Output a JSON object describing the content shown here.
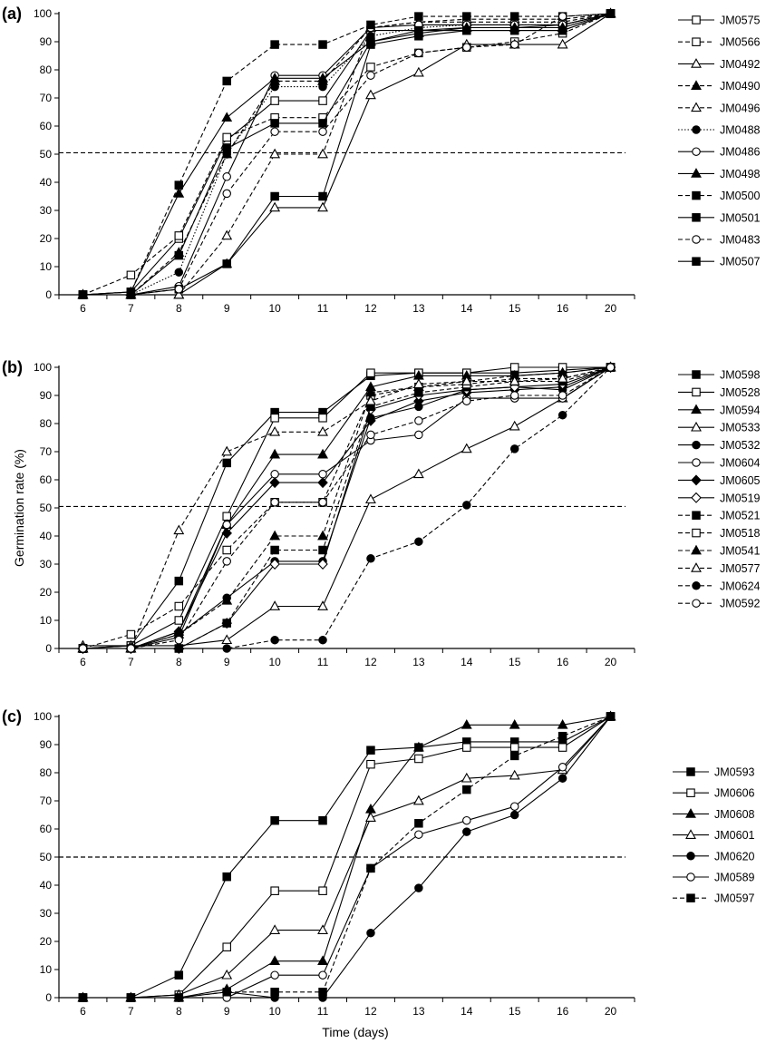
{
  "figure": {
    "ylabel": "Germination rate (%)",
    "xlabel": "Time (days)"
  },
  "chart_data": [
    {
      "type": "line",
      "panel_label": "(a)",
      "categories": [
        "6",
        "7",
        "8",
        "9",
        "10",
        "11",
        "12",
        "13",
        "14",
        "15",
        "16",
        "20"
      ],
      "ylim": [
        0,
        100
      ],
      "yticks": [
        0,
        10,
        20,
        30,
        40,
        50,
        60,
        70,
        80,
        90,
        100
      ],
      "reference_line": 50.5,
      "legend_position": "right",
      "series": [
        {
          "name": "JM0575",
          "marker": "square-open",
          "dash": false,
          "values": [
            0,
            1,
            20,
            55,
            69,
            69,
            94,
            94,
            95,
            95,
            96,
            100
          ]
        },
        {
          "name": "JM0566",
          "marker": "square-open",
          "dash": true,
          "values": [
            0,
            7,
            21,
            56,
            63,
            63,
            81,
            86,
            88,
            90,
            93,
            100
          ]
        },
        {
          "name": "JM0492",
          "marker": "triangle-open",
          "dash": false,
          "values": [
            0,
            0,
            0,
            11,
            31,
            31,
            71,
            79,
            89,
            89,
            89,
            100
          ]
        },
        {
          "name": "JM0490",
          "marker": "triangle-filled",
          "dash": true,
          "values": [
            0,
            0,
            15,
            50,
            76,
            76,
            95,
            97,
            97,
            97,
            97,
            100
          ]
        },
        {
          "name": "JM0496",
          "marker": "triangle-open",
          "dash": true,
          "values": [
            0,
            0,
            0,
            21,
            50,
            50,
            95,
            97,
            98,
            98,
            98,
            100
          ]
        },
        {
          "name": "JM0488",
          "marker": "circle-filled",
          "dash": "dotted",
          "values": [
            0,
            0,
            8,
            50,
            74,
            74,
            92,
            95,
            96,
            96,
            96,
            100
          ]
        },
        {
          "name": "JM0486",
          "marker": "circle-open",
          "dash": false,
          "values": [
            0,
            0,
            3,
            42,
            78,
            78,
            95,
            96,
            96,
            96,
            96,
            100
          ]
        },
        {
          "name": "JM0498",
          "marker": "triangle-filled",
          "dash": false,
          "values": [
            0,
            1,
            36,
            63,
            77,
            77,
            90,
            93,
            95,
            95,
            95,
            100
          ]
        },
        {
          "name": "JM0500",
          "marker": "square-filled",
          "dash": true,
          "values": [
            0,
            1,
            39,
            76,
            89,
            89,
            96,
            99,
            99,
            99,
            99,
            100
          ]
        },
        {
          "name": "JM0501",
          "marker": "square-filled",
          "dash": false,
          "values": [
            0,
            0,
            2,
            11,
            35,
            35,
            89,
            92,
            94,
            94,
            94,
            100
          ]
        },
        {
          "name": "JM0483",
          "marker": "circle-open",
          "dash": true,
          "values": [
            0,
            0,
            2,
            36,
            58,
            58,
            78,
            86,
            88,
            89,
            99,
            100
          ]
        },
        {
          "name": "JM0507",
          "marker": "square-filled",
          "dash": false,
          "values": [
            0,
            0,
            14,
            52,
            61,
            61,
            90,
            94,
            94,
            94,
            94,
            100
          ]
        }
      ]
    },
    {
      "type": "line",
      "panel_label": "(b)",
      "categories": [
        "6",
        "7",
        "8",
        "9",
        "10",
        "11",
        "12",
        "13",
        "14",
        "15",
        "16",
        "20"
      ],
      "ylim": [
        0,
        100
      ],
      "yticks": [
        0,
        10,
        20,
        30,
        40,
        50,
        60,
        70,
        80,
        90,
        100
      ],
      "reference_line": 50.5,
      "legend_position": "right",
      "series": [
        {
          "name": "JM0598",
          "marker": "square-filled",
          "dash": false,
          "values": [
            0,
            1,
            24,
            66,
            84,
            84,
            97,
            98,
            98,
            98,
            99,
            100
          ]
        },
        {
          "name": "JM0528",
          "marker": "square-open",
          "dash": false,
          "values": [
            0,
            1,
            10,
            47,
            82,
            82,
            98,
            98,
            98,
            100,
            100,
            100
          ]
        },
        {
          "name": "JM0594",
          "marker": "triangle-filled",
          "dash": false,
          "values": [
            0,
            0,
            6,
            44,
            69,
            69,
            93,
            97,
            97,
            97,
            98,
            100
          ]
        },
        {
          "name": "JM0533",
          "marker": "triangle-open",
          "dash": false,
          "values": [
            1,
            1,
            1,
            3,
            15,
            15,
            53,
            62,
            71,
            79,
            89,
            100
          ]
        },
        {
          "name": "JM0532",
          "marker": "circle-filled",
          "dash": false,
          "values": [
            0,
            0,
            5,
            18,
            31,
            31,
            82,
            86,
            92,
            93,
            92,
            100
          ]
        },
        {
          "name": "JM0604",
          "marker": "circle-open",
          "dash": false,
          "values": [
            0,
            0,
            4,
            44,
            62,
            62,
            74,
            76,
            89,
            89,
            89,
            100
          ]
        },
        {
          "name": "JM0605",
          "marker": "diamond-filled",
          "dash": false,
          "values": [
            0,
            0,
            6,
            41,
            59,
            59,
            81,
            88,
            91,
            92,
            93,
            100
          ]
        },
        {
          "name": "JM0519",
          "marker": "diamond-open",
          "dash": false,
          "values": [
            0,
            0,
            0,
            9,
            30,
            30,
            85,
            90,
            92,
            93,
            94,
            100
          ]
        },
        {
          "name": "JM0521",
          "marker": "square-filled",
          "dash": true,
          "values": [
            0,
            0,
            0,
            9,
            35,
            35,
            86,
            91,
            93,
            95,
            95,
            100
          ]
        },
        {
          "name": "JM0518",
          "marker": "square-open",
          "dash": true,
          "values": [
            0,
            5,
            15,
            35,
            52,
            52,
            90,
            93,
            94,
            96,
            96,
            100
          ]
        },
        {
          "name": "JM0541",
          "marker": "triangle-filled",
          "dash": true,
          "values": [
            0,
            0,
            5,
            17,
            40,
            40,
            91,
            93,
            95,
            97,
            98,
            100
          ]
        },
        {
          "name": "JM0577",
          "marker": "triangle-open",
          "dash": true,
          "values": [
            0,
            0,
            42,
            70,
            77,
            77,
            88,
            94,
            95,
            95,
            96,
            100
          ]
        },
        {
          "name": "JM0624",
          "marker": "circle-filled",
          "dash": true,
          "values": [
            0,
            0,
            0,
            0,
            3,
            3,
            32,
            38,
            51,
            71,
            83,
            100
          ]
        },
        {
          "name": "JM0592",
          "marker": "circle-open",
          "dash": true,
          "values": [
            0,
            0,
            3,
            31,
            52,
            52,
            76,
            81,
            88,
            90,
            90,
            100
          ]
        }
      ]
    },
    {
      "type": "line",
      "panel_label": "(c)",
      "categories": [
        "6",
        "7",
        "8",
        "9",
        "10",
        "11",
        "12",
        "13",
        "14",
        "15",
        "16",
        "20"
      ],
      "ylim": [
        0,
        100
      ],
      "yticks": [
        0,
        10,
        20,
        30,
        40,
        50,
        60,
        70,
        80,
        90,
        100
      ],
      "reference_line": 50,
      "legend_position": "right",
      "series": [
        {
          "name": "JM0593",
          "marker": "square-filled",
          "dash": false,
          "values": [
            0,
            0,
            8,
            43,
            63,
            63,
            88,
            89,
            91,
            91,
            91,
            100
          ]
        },
        {
          "name": "JM0606",
          "marker": "square-open",
          "dash": false,
          "values": [
            0,
            0,
            1,
            18,
            38,
            38,
            83,
            85,
            89,
            89,
            89,
            100
          ]
        },
        {
          "name": "JM0608",
          "marker": "triangle-filled",
          "dash": false,
          "values": [
            0,
            0,
            0,
            3,
            13,
            13,
            67,
            89,
            97,
            97,
            97,
            100
          ]
        },
        {
          "name": "JM0601",
          "marker": "triangle-open",
          "dash": false,
          "values": [
            0,
            0,
            1,
            8,
            24,
            24,
            64,
            70,
            78,
            79,
            81,
            100
          ]
        },
        {
          "name": "JM0620",
          "marker": "circle-filled",
          "dash": false,
          "values": [
            0,
            0,
            0,
            2,
            0,
            0,
            23,
            39,
            59,
            65,
            78,
            100
          ]
        },
        {
          "name": "JM0589",
          "marker": "circle-open",
          "dash": false,
          "values": [
            0,
            0,
            0,
            0,
            8,
            8,
            46,
            58,
            63,
            68,
            82,
            100
          ]
        },
        {
          "name": "JM0597",
          "marker": "square-filled",
          "dash": true,
          "values": [
            0,
            0,
            0,
            2,
            2,
            2,
            46,
            62,
            74,
            86,
            93,
            100
          ]
        }
      ]
    }
  ]
}
